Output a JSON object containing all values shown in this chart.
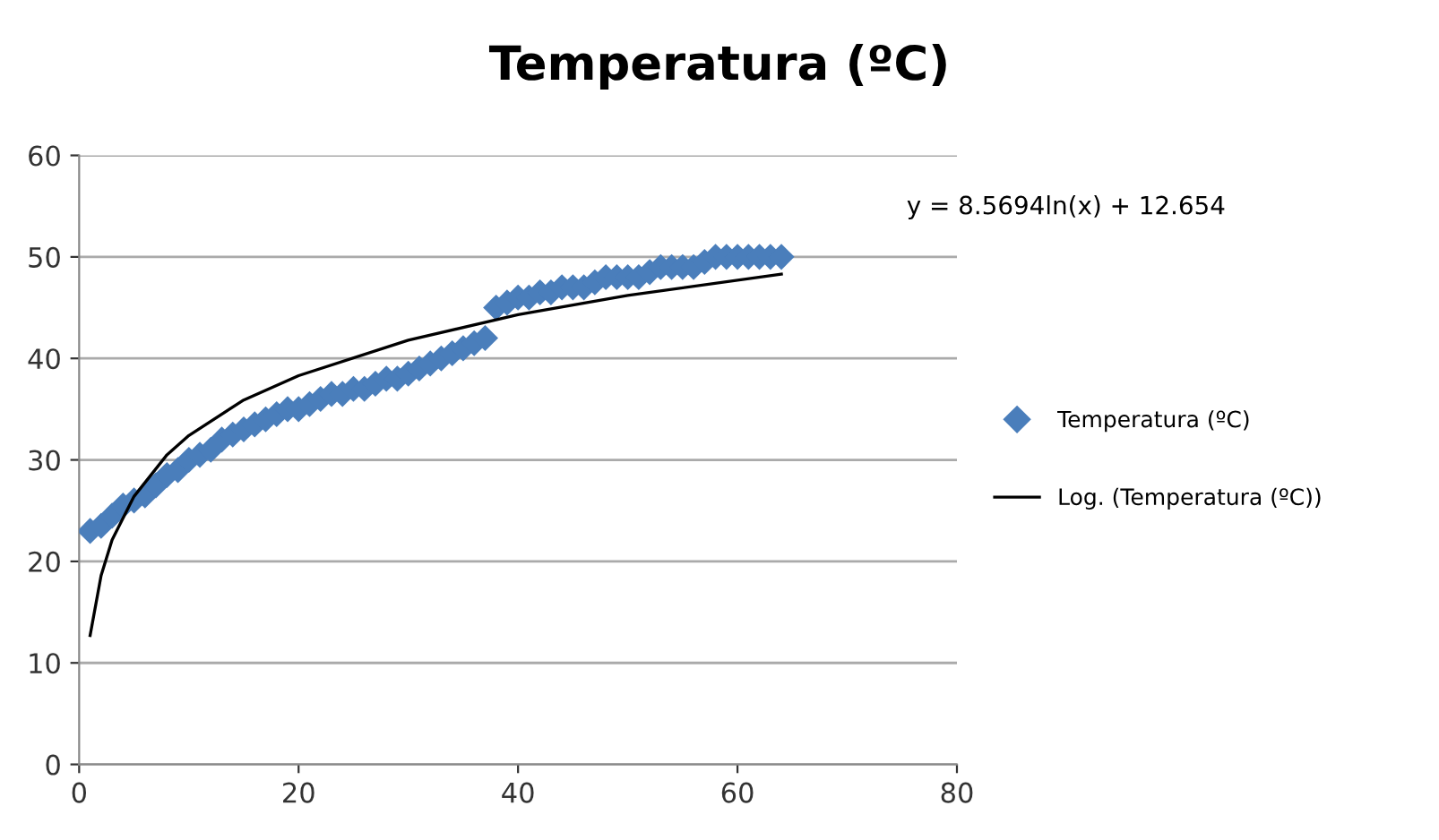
{
  "chart_data": {
    "type": "scatter",
    "title": "Temperatura (ºC)",
    "series": [
      {
        "name": "Temperatura (ºC)",
        "color": "#4a7ebb",
        "marker": "diamond",
        "x": [
          1,
          2,
          3,
          4,
          5,
          6,
          7,
          8,
          9,
          10,
          11,
          12,
          13,
          14,
          15,
          16,
          17,
          18,
          19,
          20,
          21,
          22,
          23,
          24,
          25,
          26,
          27,
          28,
          29,
          30,
          31,
          32,
          33,
          34,
          35,
          36,
          37,
          38,
          39,
          40,
          41,
          42,
          43,
          44,
          45,
          46,
          47,
          48,
          49,
          50,
          51,
          52,
          53,
          54,
          55,
          56,
          57,
          58,
          59,
          60,
          61,
          62,
          63,
          64
        ],
        "values": [
          23,
          23.5,
          24.5,
          25.5,
          26,
          26.5,
          27.5,
          28.5,
          29,
          30,
          30.5,
          31,
          32,
          32.5,
          33,
          33.5,
          34,
          34.5,
          35,
          35,
          35.5,
          36,
          36.5,
          36.5,
          37,
          37,
          37.5,
          38,
          38,
          38.5,
          39,
          39.5,
          40,
          40.5,
          41,
          41.5,
          42,
          45,
          45.5,
          46,
          46,
          46.5,
          46.5,
          47,
          47,
          47,
          47.5,
          48,
          48,
          48,
          48,
          48.5,
          49,
          49,
          49,
          49,
          49.5,
          50,
          50,
          50,
          50,
          50,
          50,
          50
        ]
      },
      {
        "name": "Log. (Temperatura (ºC))",
        "type": "line",
        "color": "#000000",
        "marker": "none",
        "line_style": "solid",
        "x": [
          1,
          2,
          3,
          5,
          8,
          10,
          15,
          20,
          30,
          40,
          50,
          64
        ],
        "values": [
          12.7,
          18.6,
          22.1,
          26.4,
          30.5,
          32.4,
          35.9,
          38.3,
          41.8,
          44.3,
          46.2,
          48.3
        ]
      }
    ],
    "annotations": [
      "y = 8.5694ln(x) + 12.654"
    ],
    "xlim": [
      0,
      80
    ],
    "xticks": [
      0,
      20,
      40,
      60,
      80
    ],
    "ylim": [
      0,
      60
    ],
    "yticks": [
      0,
      10,
      20,
      30,
      40,
      50,
      60
    ],
    "grid": "y",
    "legend": "right"
  }
}
